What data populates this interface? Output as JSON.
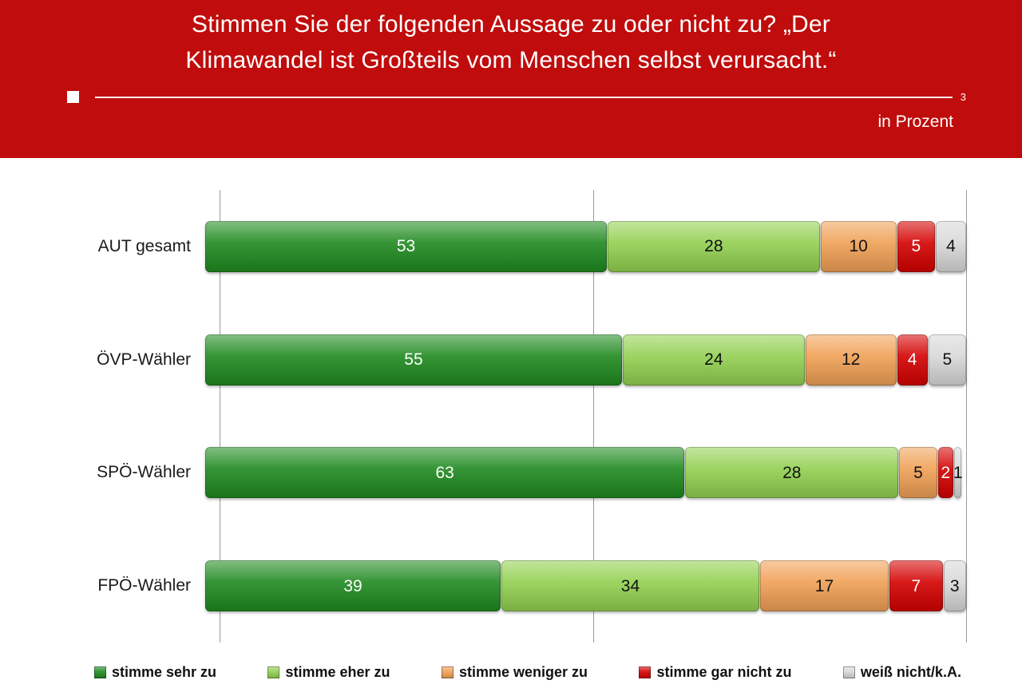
{
  "header": {
    "title_line1": "Stimmen Sie der folgenden Aussage zu oder nicht zu? „Der",
    "title_line2": "Klimawandel ist Großteils vom Menschen selbst verursacht.“",
    "slide_number": "3",
    "unit_label": "in Prozent",
    "background_color": "#c00c0c"
  },
  "chart_data": {
    "type": "bar",
    "orientation": "horizontal",
    "stacked": true,
    "title": "Stimmen Sie der folgenden Aussage zu oder nicht zu? „Der Klimawandel ist Großteils vom Menschen selbst verursacht.“",
    "unit": "in Prozent",
    "categories": [
      "AUT gesamt",
      "ÖVP-Wähler",
      "SPÖ-Wähler",
      "FPÖ-Wähler"
    ],
    "series": [
      {
        "name": "stimme sehr zu",
        "color": "#1f8a1f",
        "label_color": "#ffffff",
        "values": [
          53,
          55,
          63,
          39
        ]
      },
      {
        "name": "stimme eher zu",
        "color": "#92d050",
        "label_color": "#111111",
        "values": [
          28,
          24,
          28,
          34
        ]
      },
      {
        "name": "stimme weniger zu",
        "color": "#f0a055",
        "label_color": "#111111",
        "values": [
          10,
          12,
          5,
          17
        ]
      },
      {
        "name": "stimme gar nicht zu",
        "color": "#d40000",
        "label_color": "#ffffff",
        "values": [
          5,
          4,
          2,
          7
        ]
      },
      {
        "name": "weiß nicht/k.A.",
        "color": "#d8d8d8",
        "label_color": "#111111",
        "values": [
          4,
          5,
          1,
          3
        ]
      }
    ],
    "xlim": [
      0,
      100
    ],
    "gridlines_at": [
      0,
      50,
      100
    ],
    "grid_color": "#9a9a9a",
    "legend_position": "bottom"
  }
}
